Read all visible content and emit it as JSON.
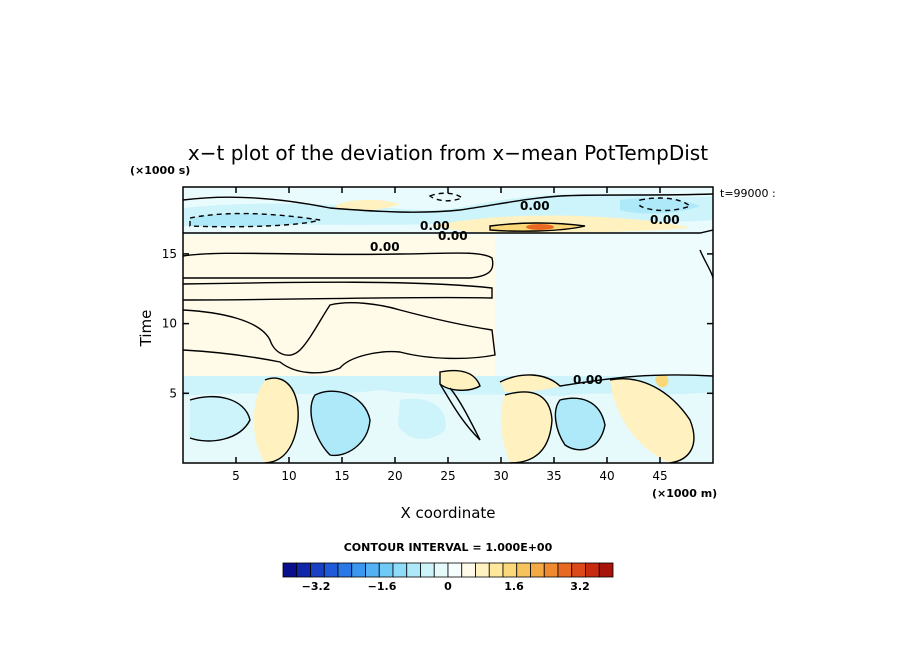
{
  "chart_data": {
    "type": "heatmap",
    "title": "x−t plot of the deviation from x−mean PotTempDist",
    "xlabel": "X coordinate",
    "ylabel": "Time",
    "x_unit": "(×1000 m)",
    "y_unit": "(×1000 s)",
    "xlim": [
      0,
      50
    ],
    "ylim": [
      0,
      19.8
    ],
    "x_ticks": [
      5,
      10,
      15,
      20,
      25,
      30,
      35,
      40,
      45
    ],
    "y_ticks": [
      5,
      10,
      15
    ],
    "time_label": "t=99000 :",
    "contour_interval": "CONTOUR INTERVAL = 1.000E+00",
    "contour_label": "0.00",
    "colorbar": {
      "min": -4.0,
      "max": 4.0,
      "step": 0.4,
      "ticks": [
        -3.2,
        -1.6,
        0,
        1.6,
        3.2
      ],
      "tick_labels": [
        "−3.2",
        "−1.6",
        "0",
        "1.6",
        "3.2"
      ],
      "colors": [
        "#0a0f8c",
        "#1226a8",
        "#1a40c4",
        "#1f5ad8",
        "#2a78e6",
        "#3a96ee",
        "#52b2f4",
        "#6fcaf6",
        "#8edcf8",
        "#aee9fa",
        "#cdf3fb",
        "#e6fafc",
        "#f5fdfd",
        "#fffbe8",
        "#fff2c0",
        "#ffe89a",
        "#fbd87a",
        "#f6c35c",
        "#f3a944",
        "#ef8a30",
        "#e86a22",
        "#dd4818",
        "#c82a10",
        "#a8140c"
      ]
    },
    "bands": [
      {
        "t_from": 0,
        "t_to": 6.2,
        "description": "lower region: cyan negative anomalies with yellow positive blobs near x 10, 27, 30, 37, 44"
      },
      {
        "t_from": 6.2,
        "t_to": 16.7,
        "description": "middle region: pale yellow left, pale cyan right"
      },
      {
        "t_from": 16.7,
        "t_to": 19.8,
        "description": "upper region: cyan and yellow stripes, max near x 33, t 17.4"
      }
    ]
  }
}
